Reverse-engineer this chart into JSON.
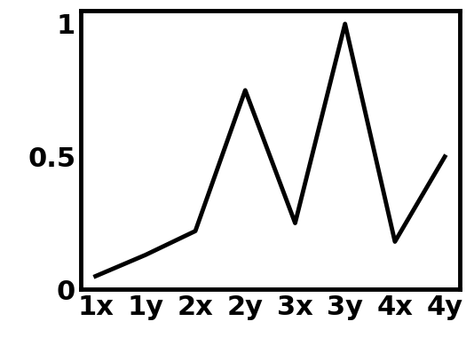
{
  "x_labels": [
    "1x",
    "1y",
    "2x",
    "2y",
    "3x",
    "3y",
    "4x",
    "4y"
  ],
  "y_values": [
    0.05,
    0.13,
    0.22,
    0.75,
    0.25,
    1.0,
    0.18,
    0.5
  ],
  "line_color": "#000000",
  "line_width": 3.5,
  "yticks": [
    0,
    0.5,
    1
  ],
  "ytick_labels": [
    "0",
    "0.5",
    "1"
  ],
  "ylim": [
    0,
    1.05
  ],
  "background_color": "#ffffff",
  "tick_fontsize": 22,
  "tick_fontweight": "bold",
  "spine_linewidth": 3.5
}
